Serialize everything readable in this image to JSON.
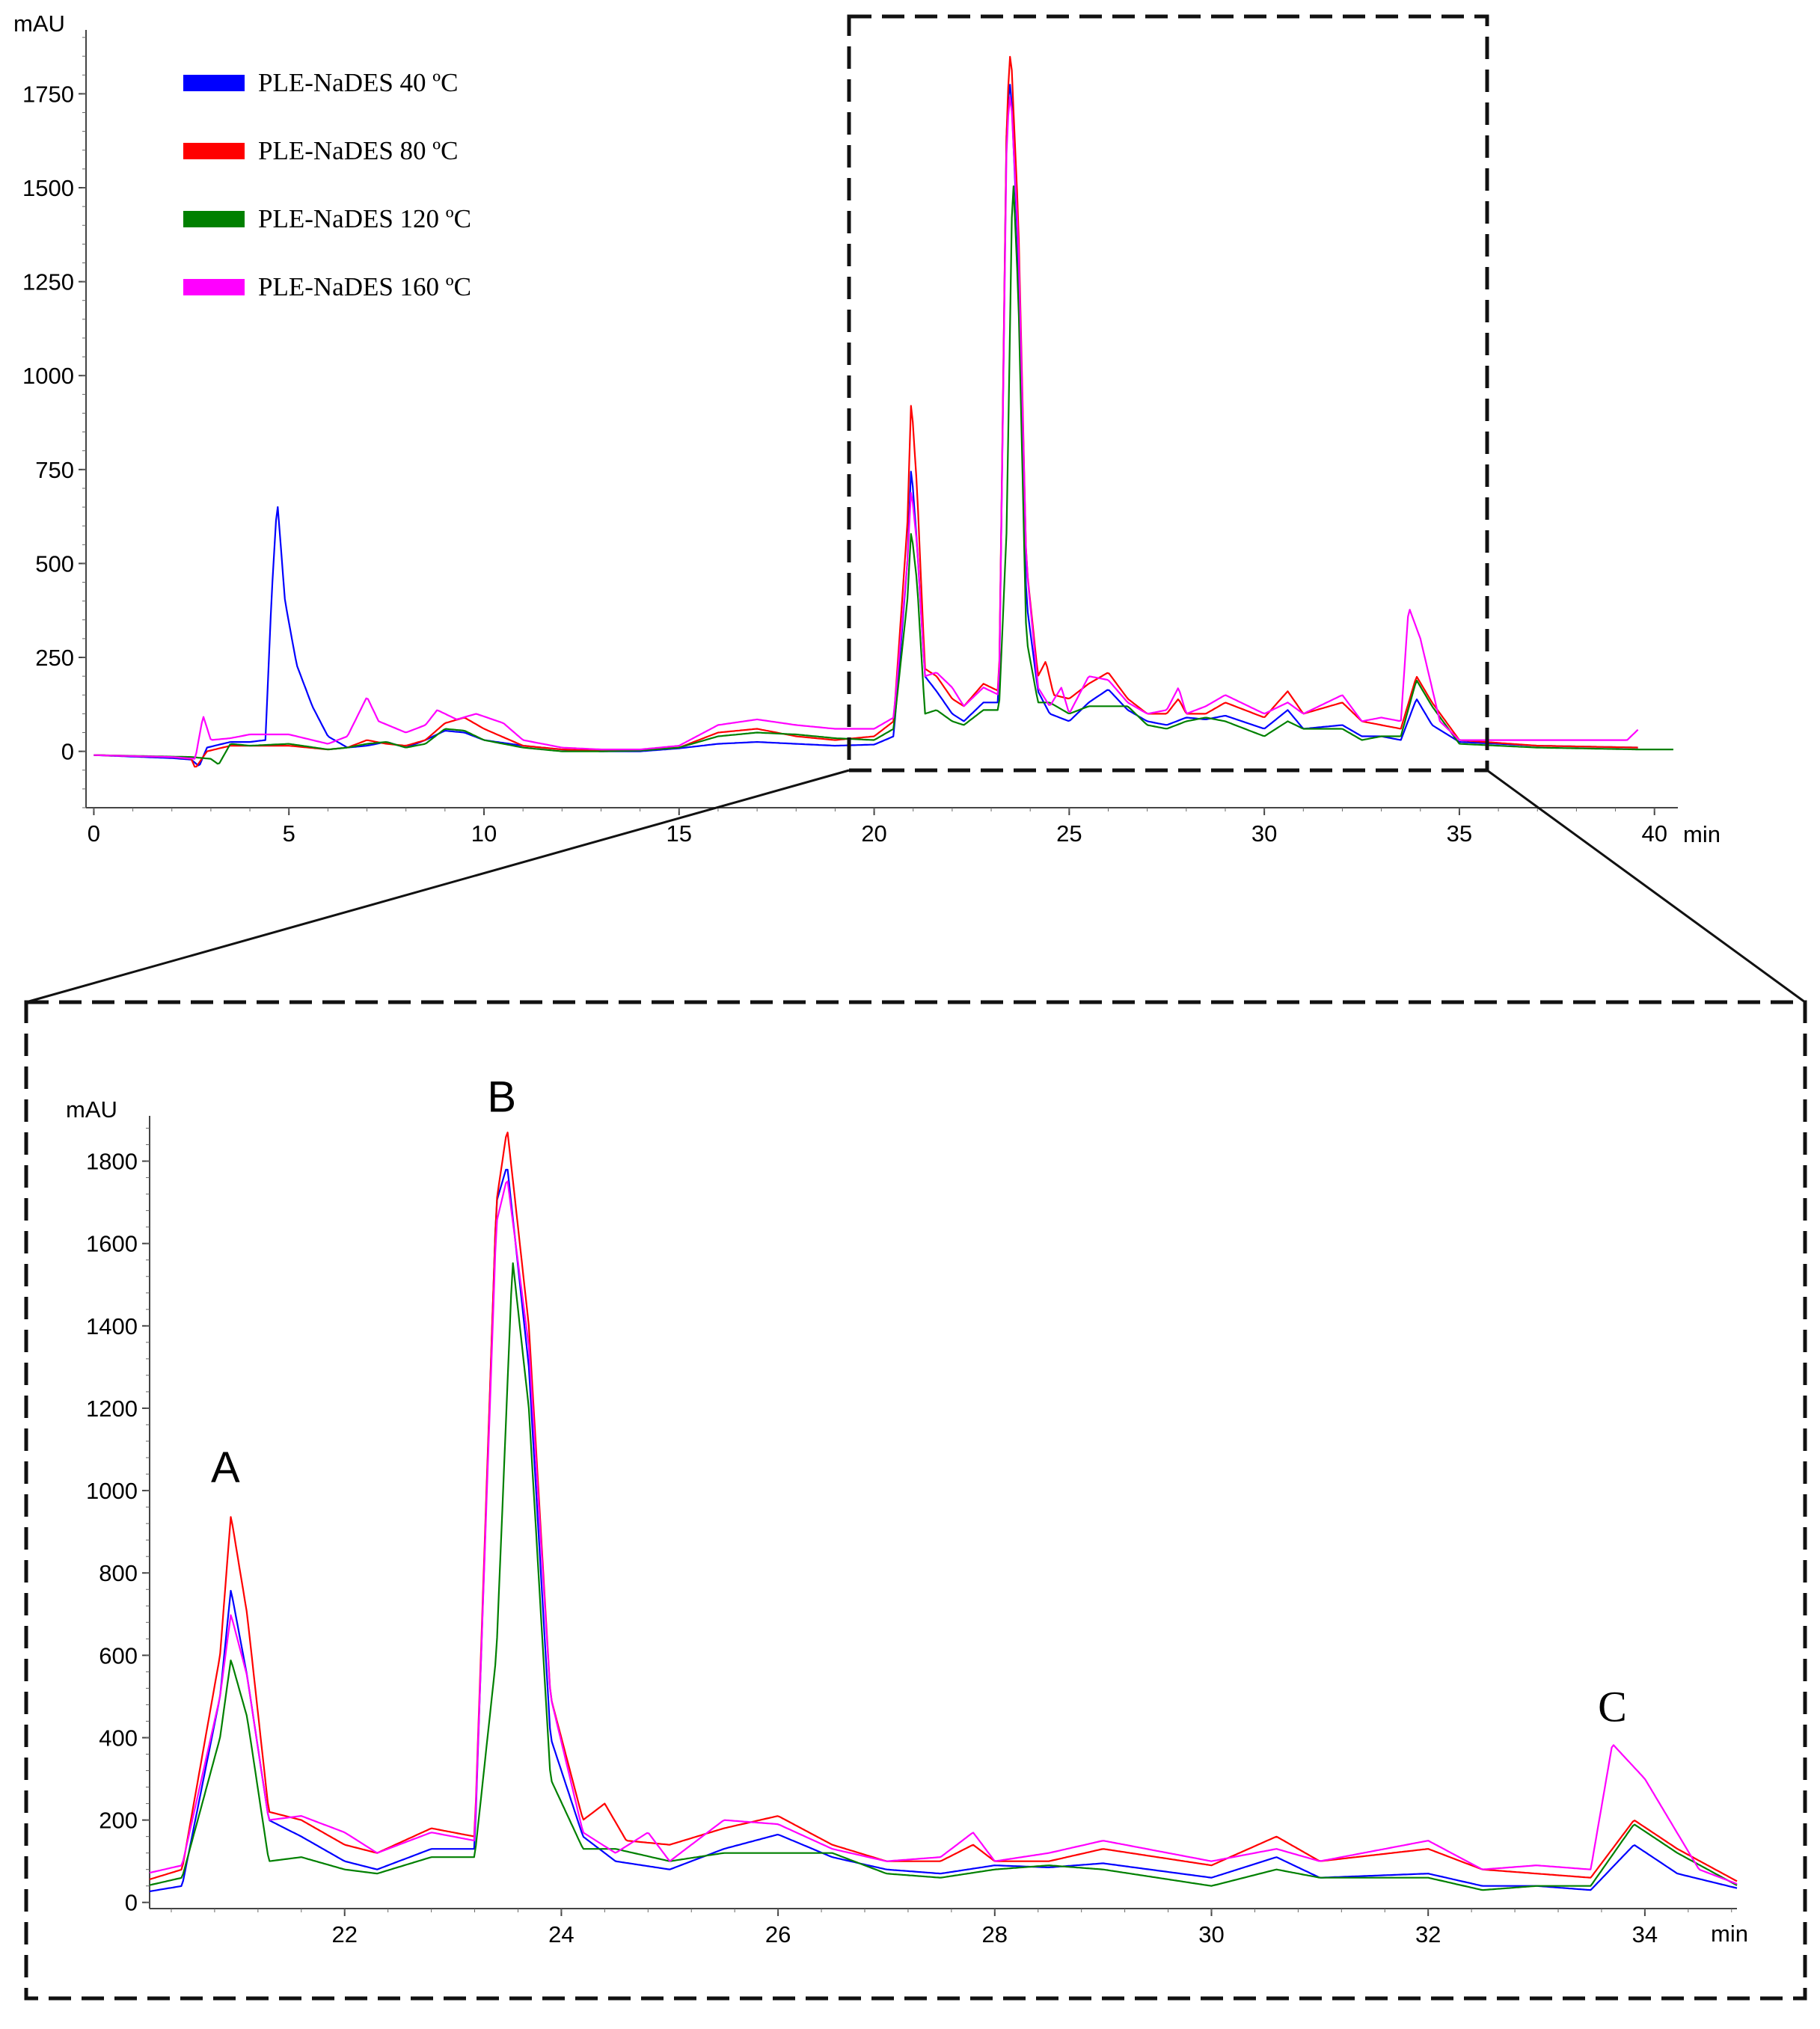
{
  "chart_data": [
    {
      "type": "line",
      "panel": "full-chromatogram",
      "xlabel": "min",
      "ylabel": "mAU",
      "xlim": [
        -0.2,
        40.6
      ],
      "ylim": [
        -150,
        1920
      ],
      "xticks": [
        0,
        5,
        10,
        15,
        20,
        25,
        30,
        35,
        40
      ],
      "yticks": [
        0,
        250,
        500,
        750,
        1000,
        1250,
        1500,
        1750
      ],
      "legend_position": "top-left",
      "series": [
        {
          "name": "PLE-NaDES 40 ºC",
          "color": "#0000ff",
          "points": [
            [
              0,
              -10
            ],
            [
              2,
              -18
            ],
            [
              2.5,
              -22
            ],
            [
              2.7,
              -40
            ],
            [
              2.9,
              10
            ],
            [
              3.5,
              25
            ],
            [
              4,
              25
            ],
            [
              4.4,
              30
            ],
            [
              4.55,
              400
            ],
            [
              4.7,
              670
            ],
            [
              4.9,
              400
            ],
            [
              5.2,
              230
            ],
            [
              5.6,
              120
            ],
            [
              6,
              40
            ],
            [
              6.5,
              10
            ],
            [
              7,
              15
            ],
            [
              7.5,
              25
            ],
            [
              8,
              10
            ],
            [
              8.5,
              30
            ],
            [
              9,
              55
            ],
            [
              9.5,
              50
            ],
            [
              10,
              30
            ],
            [
              11,
              15
            ],
            [
              12,
              5
            ],
            [
              13,
              0
            ],
            [
              14,
              0
            ],
            [
              15,
              8
            ],
            [
              16,
              20
            ],
            [
              17,
              25
            ],
            [
              18,
              20
            ],
            [
              19,
              15
            ],
            [
              20,
              18
            ],
            [
              20.5,
              40
            ],
            [
              20.85,
              500
            ],
            [
              20.95,
              760
            ],
            [
              21.1,
              550
            ],
            [
              21.3,
              200
            ],
            [
              21.6,
              160
            ],
            [
              22,
              100
            ],
            [
              22.3,
              80
            ],
            [
              22.8,
              130
            ],
            [
              23.2,
              130
            ],
            [
              23.4,
              1700
            ],
            [
              23.5,
              1790
            ],
            [
              23.7,
              1300
            ],
            [
              23.9,
              400
            ],
            [
              24.2,
              160
            ],
            [
              24.5,
              100
            ],
            [
              25,
              80
            ],
            [
              25.5,
              130
            ],
            [
              26,
              165
            ],
            [
              26.5,
              110
            ],
            [
              27,
              80
            ],
            [
              27.5,
              70
            ],
            [
              28,
              90
            ],
            [
              28.5,
              85
            ],
            [
              29,
              95
            ],
            [
              30,
              60
            ],
            [
              30.6,
              110
            ],
            [
              31,
              60
            ],
            [
              32,
              70
            ],
            [
              32.5,
              40
            ],
            [
              33,
              40
            ],
            [
              33.5,
              30
            ],
            [
              33.9,
              140
            ],
            [
              34.3,
              70
            ],
            [
              35,
              25
            ],
            [
              37,
              15
            ],
            [
              39.6,
              10
            ]
          ]
        },
        {
          "name": "PLE-NaDES 80 ºC",
          "color": "#ff0000",
          "points": [
            [
              0,
              -10
            ],
            [
              2,
              -15
            ],
            [
              2.5,
              -20
            ],
            [
              2.6,
              -45
            ],
            [
              2.9,
              0
            ],
            [
              3.5,
              15
            ],
            [
              4,
              15
            ],
            [
              5,
              15
            ],
            [
              6,
              5
            ],
            [
              6.5,
              10
            ],
            [
              7,
              30
            ],
            [
              7.5,
              20
            ],
            [
              8,
              15
            ],
            [
              8.5,
              30
            ],
            [
              9,
              75
            ],
            [
              9.5,
              90
            ],
            [
              10,
              60
            ],
            [
              11,
              15
            ],
            [
              12,
              5
            ],
            [
              13,
              2
            ],
            [
              14,
              3
            ],
            [
              15,
              10
            ],
            [
              16,
              50
            ],
            [
              17,
              60
            ],
            [
              18,
              40
            ],
            [
              19,
              30
            ],
            [
              20,
              40
            ],
            [
              20.5,
              80
            ],
            [
              20.85,
              600
            ],
            [
              20.95,
              940
            ],
            [
              21.1,
              700
            ],
            [
              21.3,
              220
            ],
            [
              21.6,
              200
            ],
            [
              22,
              140
            ],
            [
              22.3,
              120
            ],
            [
              22.8,
              180
            ],
            [
              23.2,
              160
            ],
            [
              23.4,
              1700
            ],
            [
              23.5,
              1880
            ],
            [
              23.7,
              1400
            ],
            [
              23.9,
              500
            ],
            [
              24.2,
              200
            ],
            [
              24.4,
              240
            ],
            [
              24.6,
              150
            ],
            [
              25,
              140
            ],
            [
              25.5,
              180
            ],
            [
              26,
              210
            ],
            [
              26.5,
              140
            ],
            [
              27,
              100
            ],
            [
              27.5,
              100
            ],
            [
              27.8,
              140
            ],
            [
              28,
              100
            ],
            [
              28.5,
              100
            ],
            [
              29,
              130
            ],
            [
              30,
              90
            ],
            [
              30.6,
              160
            ],
            [
              31,
              100
            ],
            [
              32,
              130
            ],
            [
              32.5,
              80
            ],
            [
              33,
              70
            ],
            [
              33.5,
              60
            ],
            [
              33.9,
              200
            ],
            [
              34.3,
              130
            ],
            [
              35,
              30
            ],
            [
              37,
              15
            ],
            [
              39.6,
              10
            ]
          ]
        },
        {
          "name": "PLE-NaDES 120 ºC",
          "color": "#008000",
          "points": [
            [
              0,
              -10
            ],
            [
              2.5,
              -15
            ],
            [
              3,
              -20
            ],
            [
              3.2,
              -35
            ],
            [
              3.5,
              20
            ],
            [
              4,
              15
            ],
            [
              5,
              20
            ],
            [
              6,
              5
            ],
            [
              6.5,
              10
            ],
            [
              7,
              20
            ],
            [
              7.5,
              25
            ],
            [
              8,
              10
            ],
            [
              8.5,
              20
            ],
            [
              9,
              60
            ],
            [
              9.5,
              55
            ],
            [
              10,
              30
            ],
            [
              11,
              10
            ],
            [
              12,
              0
            ],
            [
              13,
              0
            ],
            [
              14,
              2
            ],
            [
              15,
              10
            ],
            [
              16,
              40
            ],
            [
              17,
              50
            ],
            [
              18,
              45
            ],
            [
              19,
              35
            ],
            [
              20,
              30
            ],
            [
              20.5,
              60
            ],
            [
              20.85,
              400
            ],
            [
              20.95,
              590
            ],
            [
              21.1,
              450
            ],
            [
              21.3,
              100
            ],
            [
              21.6,
              110
            ],
            [
              22,
              80
            ],
            [
              22.3,
              70
            ],
            [
              22.8,
              110
            ],
            [
              23.2,
              110
            ],
            [
              23.4,
              600
            ],
            [
              23.55,
              1560
            ],
            [
              23.7,
              1200
            ],
            [
              23.9,
              300
            ],
            [
              24.2,
              130
            ],
            [
              24.5,
              130
            ],
            [
              25,
              100
            ],
            [
              25.5,
              120
            ],
            [
              26,
              120
            ],
            [
              26.5,
              120
            ],
            [
              27,
              70
            ],
            [
              27.5,
              60
            ],
            [
              28,
              80
            ],
            [
              28.5,
              90
            ],
            [
              29,
              80
            ],
            [
              30,
              40
            ],
            [
              30.6,
              80
            ],
            [
              31,
              60
            ],
            [
              32,
              60
            ],
            [
              32.5,
              30
            ],
            [
              33,
              40
            ],
            [
              33.5,
              40
            ],
            [
              33.9,
              190
            ],
            [
              34.3,
              120
            ],
            [
              35,
              20
            ],
            [
              37,
              10
            ],
            [
              39.6,
              5
            ],
            [
              40.5,
              5
            ]
          ]
        },
        {
          "name": "PLE-NaDES 160 ºC",
          "color": "#ff00ff",
          "points": [
            [
              0,
              -10
            ],
            [
              2,
              -15
            ],
            [
              2.6,
              -20
            ],
            [
              2.8,
              95
            ],
            [
              3,
              30
            ],
            [
              3.5,
              35
            ],
            [
              4,
              45
            ],
            [
              5,
              45
            ],
            [
              6,
              20
            ],
            [
              6.5,
              40
            ],
            [
              7,
              145
            ],
            [
              7.3,
              80
            ],
            [
              8,
              50
            ],
            [
              8.5,
              70
            ],
            [
              8.8,
              110
            ],
            [
              9.3,
              85
            ],
            [
              9.8,
              100
            ],
            [
              10.5,
              75
            ],
            [
              11,
              30
            ],
            [
              12,
              10
            ],
            [
              13,
              5
            ],
            [
              14,
              5
            ],
            [
              15,
              15
            ],
            [
              16,
              70
            ],
            [
              17,
              85
            ],
            [
              18,
              70
            ],
            [
              19,
              60
            ],
            [
              20,
              60
            ],
            [
              20.5,
              90
            ],
            [
              20.85,
              500
            ],
            [
              20.95,
              700
            ],
            [
              21.1,
              550
            ],
            [
              21.3,
              200
            ],
            [
              21.6,
              210
            ],
            [
              22,
              170
            ],
            [
              22.3,
              120
            ],
            [
              22.8,
              170
            ],
            [
              23.2,
              150
            ],
            [
              23.4,
              1650
            ],
            [
              23.5,
              1760
            ],
            [
              23.7,
              1350
            ],
            [
              23.9,
              500
            ],
            [
              24.2,
              170
            ],
            [
              24.5,
              120
            ],
            [
              24.8,
              170
            ],
            [
              25,
              100
            ],
            [
              25.5,
              200
            ],
            [
              26,
              190
            ],
            [
              26.5,
              130
            ],
            [
              27,
              100
            ],
            [
              27.5,
              110
            ],
            [
              27.8,
              170
            ],
            [
              28,
              100
            ],
            [
              28.5,
              120
            ],
            [
              29,
              150
            ],
            [
              30,
              100
            ],
            [
              30.6,
              130
            ],
            [
              31,
              100
            ],
            [
              32,
              150
            ],
            [
              32.5,
              80
            ],
            [
              33,
              90
            ],
            [
              33.5,
              80
            ],
            [
              33.7,
              385
            ],
            [
              34,
              300
            ],
            [
              34.5,
              80
            ],
            [
              35,
              30
            ],
            [
              36.5,
              30
            ],
            [
              39.3,
              30
            ],
            [
              39.6,
              60
            ]
          ]
        }
      ]
    },
    {
      "type": "line",
      "panel": "zoomed-region",
      "xlabel": "min",
      "ylabel": "mAU",
      "xlim": [
        20.2,
        34.85
      ],
      "ylim": [
        -15,
        1910
      ],
      "xticks": [
        22,
        24,
        26,
        28,
        30,
        32,
        34
      ],
      "yticks": [
        0,
        200,
        400,
        600,
        800,
        1000,
        1200,
        1400,
        1600,
        1800
      ],
      "annotations": [
        {
          "label": "A",
          "x": 20.9,
          "y": 1020
        },
        {
          "label": "B",
          "x": 23.45,
          "y": 1920
        },
        {
          "label": "C",
          "x": 33.7,
          "y": 440
        }
      ]
    }
  ],
  "legend_swatch_colors": [
    "#0000ff",
    "#ff0000",
    "#008000",
    "#ff00ff"
  ]
}
